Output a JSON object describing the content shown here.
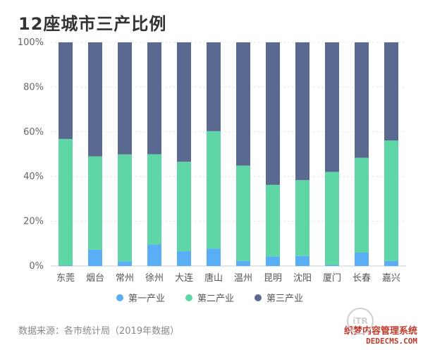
{
  "chart_data": {
    "type": "bar",
    "stacked": true,
    "title": "12座城市三产比例",
    "categories": [
      "东莞",
      "烟台",
      "常州",
      "徐州",
      "大连",
      "唐山",
      "温州",
      "昆明",
      "沈阳",
      "厦门",
      "长春",
      "嘉兴"
    ],
    "series": [
      {
        "name": "第一产业",
        "color": "#5aaef5",
        "values": [
          0.3,
          7.3,
          2.1,
          9.6,
          6.6,
          7.8,
          2.3,
          4.3,
          4.5,
          0.5,
          6.0,
          2.3
        ]
      },
      {
        "name": "第二产业",
        "color": "#5fd6a6",
        "values": [
          56.5,
          41.7,
          47.8,
          40.4,
          40.0,
          52.5,
          42.6,
          32.0,
          33.9,
          41.6,
          42.4,
          53.8
        ]
      },
      {
        "name": "第三产业",
        "color": "#5a6990",
        "values": [
          43.2,
          51.0,
          50.1,
          50.0,
          53.4,
          39.7,
          55.1,
          63.7,
          61.6,
          57.9,
          51.6,
          43.9
        ]
      }
    ],
    "yticks": [
      "0%",
      "20%",
      "40%",
      "60%",
      "80%",
      "100%"
    ],
    "ylim": [
      0,
      100
    ],
    "grid": true,
    "legend_position": "bottom"
  },
  "source": "数据来源：各市统计局（2019年数据）",
  "watermark": {
    "logo": "iTR",
    "line1": "织梦内容管理系统",
    "line2": "DEDECMS.COM"
  }
}
